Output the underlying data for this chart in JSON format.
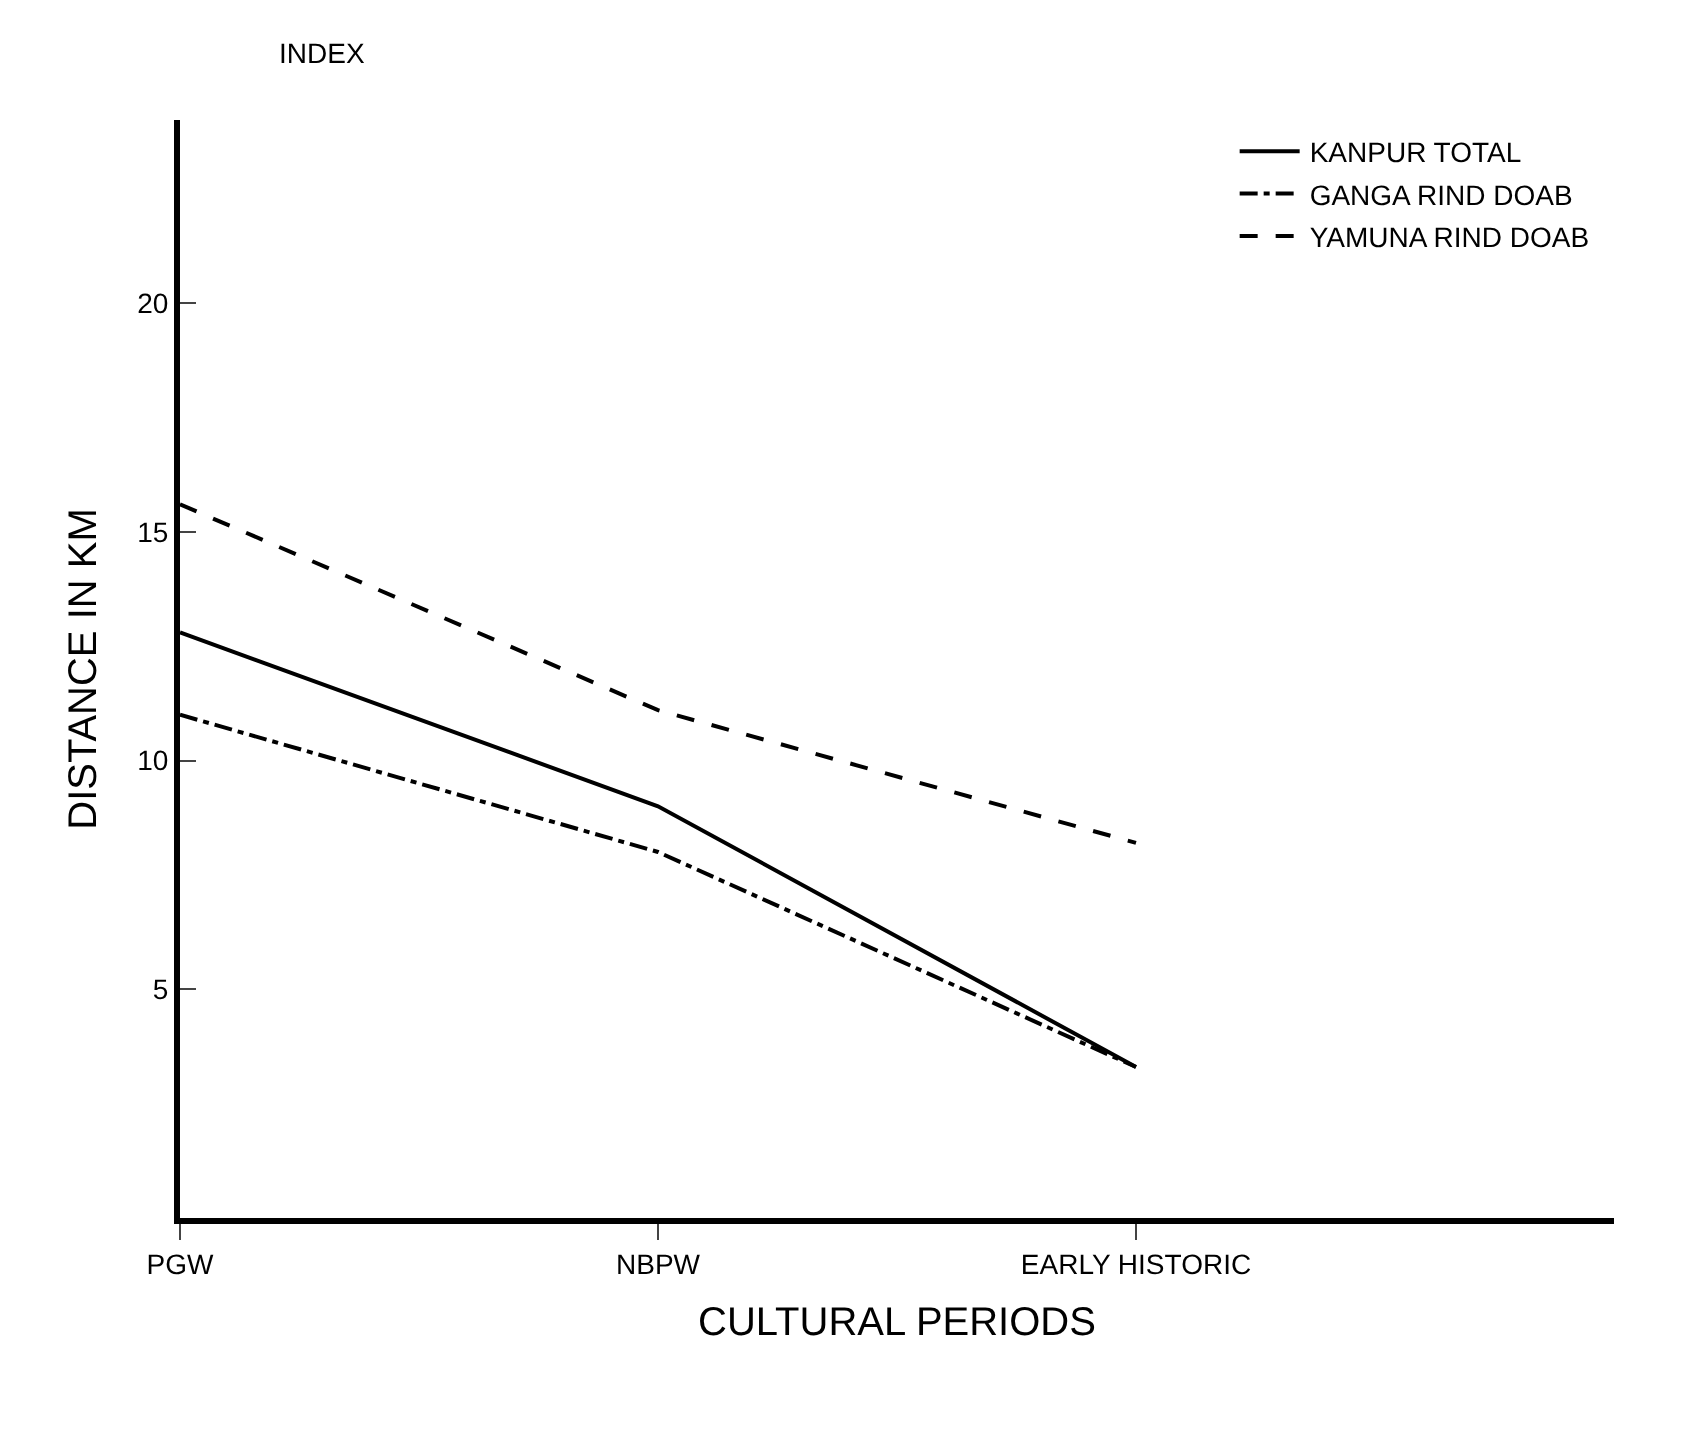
{
  "chart_data": {
    "type": "line",
    "title": "INDEX",
    "xlabel": "CULTURAL PERIODS",
    "ylabel": "DISTANCE IN KM",
    "categories": [
      "PGW",
      "NBPW",
      "EARLY HISTORIC"
    ],
    "series": [
      {
        "name": "KANPUR TOTAL",
        "color": "#000000",
        "line_style": "solid",
        "values": [
          12.8,
          9.0,
          3.3
        ]
      },
      {
        "name": "GANGA RIND DOAB",
        "color": "#000000",
        "line_style": "dashdot",
        "values": [
          11.0,
          8.0,
          3.3
        ]
      },
      {
        "name": "YAMUNA RIND DOAB",
        "color": "#000000",
        "line_style": "dashed",
        "values": [
          15.6,
          11.1,
          8.2
        ]
      }
    ],
    "ylim": [
      0,
      24
    ],
    "yticks": [
      5,
      10,
      15,
      20
    ],
    "legend": "top right",
    "marker": "none"
  }
}
